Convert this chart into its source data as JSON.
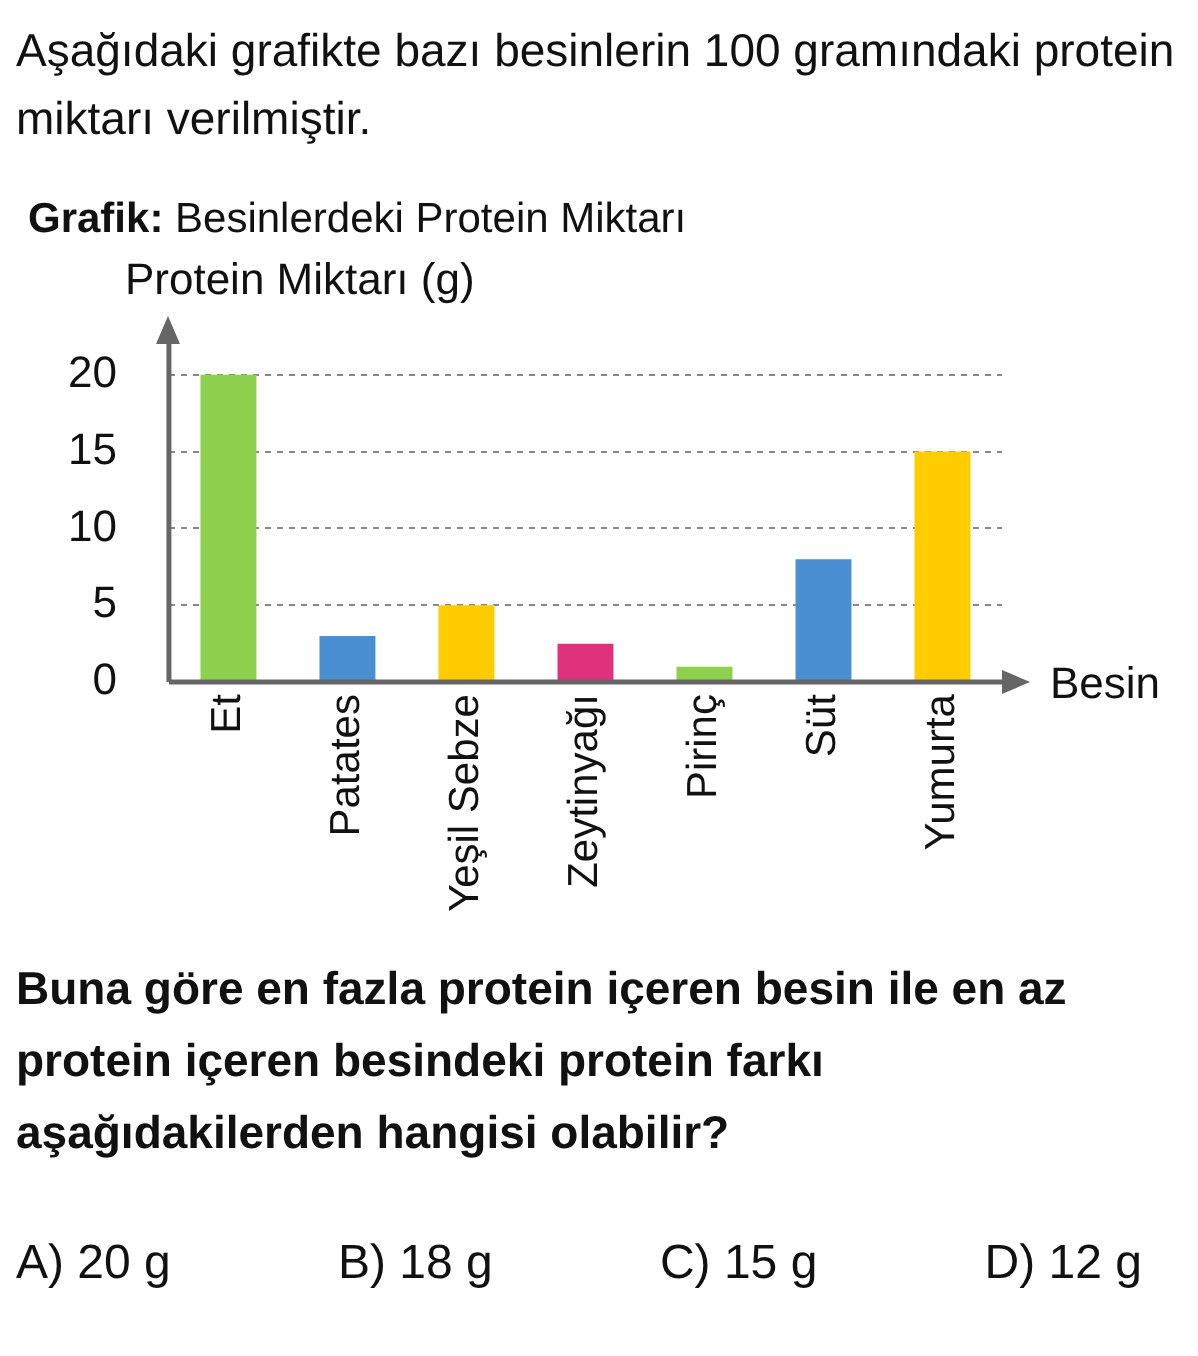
{
  "chart_data": {
    "type": "bar",
    "title": "Grafik: Besinlerdeki Protein Miktarı",
    "ylabel": "Protein Miktarı (g)",
    "xlabel": "Besin",
    "categories": [
      "Et",
      "Patates",
      "Yeşil Sebze",
      "Zeytinyağı",
      "Pirinç",
      "Süt",
      "Yumurta"
    ],
    "values": [
      20,
      3,
      5,
      2.5,
      1,
      8,
      15
    ],
    "colors": [
      "#8dd14f",
      "#4a8fd1",
      "#ffcc00",
      "#e0327c",
      "#8dd14f",
      "#4a8fd1",
      "#ffcc00"
    ],
    "ylim": [
      0,
      22
    ],
    "yticks": [
      0,
      5,
      10,
      15,
      20
    ],
    "grid": "y",
    "annotations": [
      "Aşağıdaki grafikte bazı besinlerin 100 gramındaki protein miktarı verilmiştir.",
      "Buna göre en fazla protein içeren besin ile en az protein içeren besindeki protein farkı aşağıdakilerden hangisi olabilir?",
      "A) 20 g",
      "B) 18 g",
      "C) 15 g",
      "D) 12 g"
    ]
  }
}
